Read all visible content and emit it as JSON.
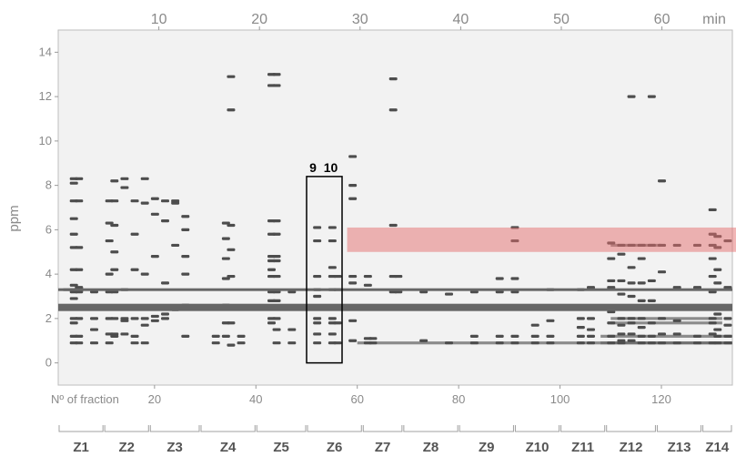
{
  "chart_data": {
    "type": "heatmap",
    "title": "",
    "ylabel": "ppm",
    "top_axis": {
      "label": "min",
      "ticks": [
        "10",
        "20",
        "30",
        "40",
        "50",
        "60"
      ],
      "range": [
        0,
        67
      ]
    },
    "bottom_axis": {
      "label": "Nº of fraction",
      "ticks": [
        "20",
        "40",
        "60",
        "80",
        "100",
        "120"
      ],
      "range": [
        1,
        134
      ]
    },
    "y_axis": {
      "ticks": [
        "0",
        "2",
        "4",
        "6",
        "8",
        "10",
        "12",
        "14"
      ],
      "range": [
        -1,
        15
      ]
    },
    "horizontal_lines_ppm": [
      3.3,
      2.5
    ],
    "shaded_band_ppm": [
      5.0,
      6.1
    ],
    "shaded_band_fraction_start": 58,
    "highlight_box": {
      "fraction_range": [
        50,
        57
      ],
      "ppm_range": [
        0,
        8.4
      ],
      "labels": [
        "9",
        "10"
      ]
    },
    "zones": [
      {
        "label": "Z1",
        "fractions": [
          1,
          10
        ]
      },
      {
        "label": "Z2",
        "fractions": [
          10,
          19
        ]
      },
      {
        "label": "Z3",
        "fractions": [
          19,
          29
        ]
      },
      {
        "label": "Z4",
        "fractions": [
          29,
          40
        ]
      },
      {
        "label": "Z5",
        "fractions": [
          40,
          50
        ]
      },
      {
        "label": "Z6",
        "fractions": [
          50,
          61
        ]
      },
      {
        "label": "Z7",
        "fractions": [
          61,
          69
        ]
      },
      {
        "label": "Z8",
        "fractions": [
          69,
          80
        ]
      },
      {
        "label": "Z9",
        "fractions": [
          80,
          91
        ]
      },
      {
        "label": "Z10",
        "fractions": [
          91,
          100
        ]
      },
      {
        "label": "Z11",
        "fractions": [
          100,
          109
        ]
      },
      {
        "label": "Z12",
        "fractions": [
          109,
          119
        ]
      },
      {
        "label": "Z13",
        "fractions": [
          119,
          128
        ]
      },
      {
        "label": "Z14",
        "fractions": [
          128,
          134
        ]
      }
    ],
    "signals": [
      {
        "f": 4,
        "ppm": [
          8.3,
          8.1,
          7.3,
          6.5,
          5.8,
          5.2,
          4.2,
          3.5,
          3.3,
          3.2,
          2.9,
          2.0,
          1.8,
          1.2,
          0.9
        ]
      },
      {
        "f": 5,
        "ppm": [
          8.3,
          7.3,
          5.2,
          4.2,
          3.4,
          3.2,
          2.0,
          1.2,
          0.9
        ]
      },
      {
        "f": 8,
        "ppm": [
          3.2,
          2.0,
          1.5,
          0.9
        ]
      },
      {
        "f": 11,
        "ppm": [
          7.3,
          6.3,
          5.5,
          4.0,
          3.2,
          2.0,
          1.3,
          0.9
        ]
      },
      {
        "f": 12,
        "ppm": [
          8.2,
          7.3,
          6.2,
          5.0,
          4.2,
          3.2,
          2.0,
          1.3,
          1.2
        ]
      },
      {
        "f": 14,
        "ppm": [
          8.3,
          7.9,
          3.3,
          2.0,
          1.9,
          1.3
        ]
      },
      {
        "f": 16,
        "ppm": [
          7.3,
          5.8,
          4.2,
          2.0,
          1.2,
          0.9
        ]
      },
      {
        "f": 18,
        "ppm": [
          8.3,
          7.2,
          4.0,
          2.0,
          1.7,
          0.9
        ]
      },
      {
        "f": 20,
        "ppm": [
          7.4,
          6.7,
          4.8,
          2.1,
          1.9
        ]
      },
      {
        "f": 22,
        "ppm": [
          7.3,
          6.4,
          3.6,
          2.2,
          2.0
        ]
      },
      {
        "f": 24,
        "ppm": [
          7.3,
          7.2,
          5.3,
          2.4
        ]
      },
      {
        "f": 26,
        "ppm": [
          6.6,
          6.0,
          4.8,
          4.0,
          2.6,
          1.2
        ]
      },
      {
        "f": 32,
        "ppm": [
          1.2,
          0.9
        ]
      },
      {
        "f": 34,
        "ppm": [
          6.3,
          5.6,
          4.7,
          3.8,
          2.6,
          1.8,
          1.2
        ]
      },
      {
        "f": 35,
        "ppm": [
          12.9,
          11.4,
          6.2,
          5.1,
          3.9,
          1.8,
          0.8
        ]
      },
      {
        "f": 37,
        "ppm": [
          1.2,
          0.9
        ]
      },
      {
        "f": 43,
        "ppm": [
          13.0,
          12.5,
          6.4,
          5.8,
          4.8,
          4.6,
          4.2,
          3.9,
          3.2,
          2.8,
          2.0,
          1.8
        ]
      },
      {
        "f": 44,
        "ppm": [
          13.0,
          12.5,
          6.4,
          5.8,
          4.8,
          4.6,
          3.9,
          3.2,
          2.8,
          2.0,
          1.5,
          0.9
        ]
      },
      {
        "f": 47,
        "ppm": [
          3.2,
          1.5,
          0.9
        ]
      },
      {
        "f": 52,
        "ppm": [
          6.1,
          5.5,
          3.9,
          3.3,
          3.0,
          2.0,
          1.8,
          1.3,
          0.9
        ]
      },
      {
        "f": 55,
        "ppm": [
          6.1,
          5.5,
          4.3,
          3.9,
          3.3,
          2.0,
          1.8,
          1.3,
          0.9
        ]
      },
      {
        "f": 56,
        "ppm": [
          3.9,
          3.3,
          1.8,
          0.9
        ]
      },
      {
        "f": 59,
        "ppm": [
          9.3,
          8.0,
          7.4,
          3.9,
          3.6,
          1.9,
          1.0
        ]
      },
      {
        "f": 62,
        "ppm": [
          3.9,
          3.5,
          1.1,
          0.9
        ]
      },
      {
        "f": 63,
        "ppm": [
          1.1,
          0.9
        ]
      },
      {
        "f": 67,
        "ppm": [
          12.8,
          11.4,
          6.2,
          3.9,
          3.2
        ]
      },
      {
        "f": 68,
        "ppm": [
          3.9,
          3.2
        ]
      },
      {
        "f": 73,
        "ppm": [
          3.2,
          1.0
        ]
      },
      {
        "f": 78,
        "ppm": [
          3.1,
          0.9
        ]
      },
      {
        "f": 83,
        "ppm": [
          3.2,
          1.2,
          0.9
        ]
      },
      {
        "f": 88,
        "ppm": [
          3.8,
          3.2,
          1.2,
          0.9
        ]
      },
      {
        "f": 91,
        "ppm": [
          6.1,
          5.5,
          3.8,
          3.2,
          1.2,
          0.9
        ]
      },
      {
        "f": 95,
        "ppm": [
          1.7,
          1.2,
          0.9
        ]
      },
      {
        "f": 98,
        "ppm": [
          3.3,
          1.9,
          1.2,
          0.9
        ]
      },
      {
        "f": 104,
        "ppm": [
          3.3,
          2.0,
          1.6,
          1.2,
          0.9
        ]
      },
      {
        "f": 106,
        "ppm": [
          3.4,
          2.0,
          1.5,
          1.2,
          0.9
        ]
      },
      {
        "f": 110,
        "ppm": [
          5.4,
          4.7,
          3.7,
          3.4,
          2.3,
          1.8,
          1.2,
          0.9
        ]
      },
      {
        "f": 112,
        "ppm": [
          5.3,
          4.9,
          3.7,
          3.1,
          2.0,
          1.7,
          1.3,
          1.0,
          0.9
        ]
      },
      {
        "f": 114,
        "ppm": [
          12.0,
          5.3,
          4.3,
          3.6,
          3.0,
          2.0,
          1.8,
          1.3,
          1.0
        ]
      },
      {
        "f": 116,
        "ppm": [
          5.3,
          4.7,
          3.6,
          2.8,
          2.0,
          1.6,
          1.2,
          0.9
        ]
      },
      {
        "f": 118,
        "ppm": [
          12.0,
          5.3,
          3.7,
          2.8,
          1.8,
          1.2,
          0.9
        ]
      },
      {
        "f": 120,
        "ppm": [
          8.2,
          5.3,
          4.1,
          2.0,
          1.3,
          0.9
        ]
      },
      {
        "f": 123,
        "ppm": [
          5.3,
          3.4,
          1.9,
          1.3,
          0.9
        ]
      },
      {
        "f": 127,
        "ppm": [
          5.3,
          3.4,
          1.2,
          0.9
        ]
      },
      {
        "f": 130,
        "ppm": [
          6.9,
          5.8,
          5.3,
          4.7,
          3.9,
          3.2,
          2.0,
          1.8,
          1.3,
          0.9
        ]
      },
      {
        "f": 131,
        "ppm": [
          5.7,
          5.2,
          4.2,
          3.6,
          2.2,
          1.5,
          1.2,
          0.9
        ]
      },
      {
        "f": 133,
        "ppm": [
          5.5,
          3.4,
          2.0,
          1.7,
          1.2,
          0.9
        ]
      }
    ],
    "streaks": [
      {
        "from": 110,
        "to": 120,
        "ppm": 5.3
      },
      {
        "from": 108,
        "to": 134,
        "ppm": 1.2
      },
      {
        "from": 108,
        "to": 134,
        "ppm": 0.9
      },
      {
        "from": 110,
        "to": 132,
        "ppm": 1.8
      },
      {
        "from": 110,
        "to": 132,
        "ppm": 2.0
      },
      {
        "from": 60,
        "to": 134,
        "ppm": 0.9
      },
      {
        "from": 2,
        "to": 6,
        "ppm": 3.3
      }
    ]
  }
}
